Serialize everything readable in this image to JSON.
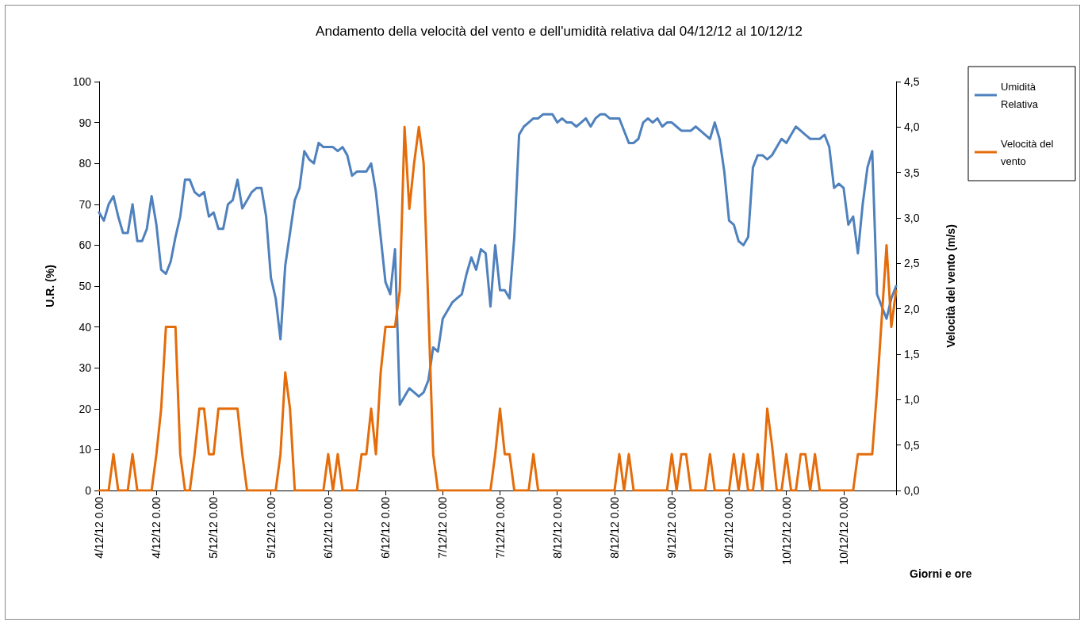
{
  "chart_data": {
    "type": "line",
    "title": "Andamento della velocità del vento e dell'umidità relativa dal 04/12/12 al 10/12/12",
    "xlabel": "Giorni e ore",
    "ylabel": "U.R. (%)",
    "y2label": "Velocità del vento (m/s)",
    "categories": [
      "4/12/12 0.00",
      null,
      null,
      null,
      null,
      null,
      null,
      null,
      null,
      null,
      null,
      null,
      "4/12/12 0.00",
      null,
      null,
      null,
      null,
      null,
      null,
      null,
      null,
      null,
      null,
      null,
      "5/12/12 0.00",
      null,
      null,
      null,
      null,
      null,
      null,
      null,
      null,
      null,
      null,
      null,
      "5/12/12 0.00",
      null,
      null,
      null,
      null,
      null,
      null,
      null,
      null,
      null,
      null,
      null,
      "6/12/12 0.00",
      null,
      null,
      null,
      null,
      null,
      null,
      null,
      null,
      null,
      null,
      null,
      "6/12/12 0.00",
      null,
      null,
      null,
      null,
      null,
      null,
      null,
      null,
      null,
      null,
      null,
      "7/12/12 0.00",
      null,
      null,
      null,
      null,
      null,
      null,
      null,
      null,
      null,
      null,
      null,
      "7/12/12 0.00",
      null,
      null,
      null,
      null,
      null,
      null,
      null,
      null,
      null,
      null,
      null,
      "8/12/12 0.00",
      null,
      null,
      null,
      null,
      null,
      null,
      null,
      null,
      null,
      null,
      null,
      "8/12/12 0.00",
      null,
      null,
      null,
      null,
      null,
      null,
      null,
      null,
      null,
      null,
      null,
      "9/12/12 0.00",
      null,
      null,
      null,
      null,
      null,
      null,
      null,
      null,
      null,
      null,
      null,
      "9/12/12 0.00",
      null,
      null,
      null,
      null,
      null,
      null,
      null,
      null,
      null,
      null,
      null,
      "10/12/12 0.00",
      null,
      null,
      null,
      null,
      null,
      null,
      null,
      null,
      null,
      null,
      null,
      "10/12/12 0.00",
      null,
      null,
      null,
      null,
      null,
      null,
      null,
      null,
      null,
      null,
      null
    ],
    "series": [
      {
        "name": "Umidità Relativa",
        "color": "#4f81bd",
        "values": [
          68,
          66,
          70,
          72,
          67,
          63,
          63,
          70,
          61,
          61,
          64,
          72,
          65,
          54,
          53,
          56,
          62,
          67,
          76,
          76,
          73,
          72,
          73,
          67,
          68,
          64,
          64,
          70,
          71,
          76,
          69,
          71,
          73,
          74,
          74,
          67,
          52,
          47,
          37,
          55,
          63,
          71,
          74,
          83,
          81,
          80,
          85,
          84,
          84,
          84,
          83,
          84,
          82,
          77,
          78,
          78,
          78,
          80,
          73,
          62,
          51,
          48,
          59,
          21,
          23,
          25,
          24,
          23,
          24,
          27,
          35,
          34,
          42,
          44,
          46,
          47,
          48,
          53,
          57,
          54,
          59,
          58,
          45,
          60,
          49,
          49,
          47,
          62,
          87,
          89,
          90,
          91,
          91,
          92,
          92,
          92,
          90,
          91,
          90,
          90,
          89,
          90,
          91,
          89,
          91,
          92,
          92,
          91,
          91,
          91,
          88,
          85,
          85,
          86,
          90,
          91,
          90,
          91,
          89,
          90,
          90,
          89,
          88,
          88,
          88,
          89,
          88,
          87,
          86,
          90,
          86,
          78,
          66,
          65,
          61,
          60,
          62,
          79,
          82,
          82,
          81,
          82,
          84,
          86,
          85,
          87,
          89,
          88,
          87,
          86,
          86,
          86,
          87,
          84,
          74,
          75,
          74,
          65,
          67,
          58,
          70,
          79,
          83,
          48,
          45,
          42,
          47,
          50
        ]
      },
      {
        "name": "Velocità del vento",
        "color": "#e46c0a",
        "axis": "y2",
        "values": [
          0,
          0,
          0,
          0.4,
          0,
          0,
          0,
          0.4,
          0,
          0,
          0,
          0,
          0.4,
          0.9,
          1.8,
          1.8,
          1.8,
          0.4,
          0,
          0,
          0.4,
          0.9,
          0.9,
          0.4,
          0.4,
          0.9,
          0.9,
          0.9,
          0.9,
          0.9,
          0.4,
          0,
          0,
          0,
          0,
          0,
          0,
          0,
          0.4,
          1.3,
          0.9,
          0,
          0,
          0,
          0,
          0,
          0,
          0,
          0.4,
          0,
          0.4,
          0,
          0,
          0,
          0,
          0.4,
          0.4,
          0.9,
          0.4,
          1.3,
          1.8,
          1.8,
          1.8,
          2.2,
          4.0,
          3.1,
          3.6,
          4.0,
          3.6,
          2.0,
          0.4,
          0,
          0,
          0,
          0,
          0,
          0,
          0,
          0,
          0,
          0,
          0,
          0,
          0.4,
          0.9,
          0.4,
          0.4,
          0,
          0,
          0,
          0,
          0.4,
          0,
          0,
          0,
          0,
          0,
          0,
          0,
          0,
          0,
          0,
          0,
          0,
          0,
          0,
          0,
          0,
          0,
          0.4,
          0,
          0.4,
          0,
          0,
          0,
          0,
          0,
          0,
          0,
          0,
          0.4,
          0,
          0.4,
          0.4,
          0,
          0,
          0,
          0,
          0.4,
          0,
          0,
          0,
          0,
          0.4,
          0,
          0.4,
          0,
          0,
          0.4,
          0,
          0.9,
          0.5,
          0,
          0,
          0.4,
          0,
          0,
          0.4,
          0.4,
          0,
          0.4,
          0,
          0,
          0,
          0,
          0,
          0,
          0,
          0,
          0.4,
          0.4,
          0.4,
          0.4,
          1.1,
          1.9,
          2.7,
          1.8,
          2.2
        ]
      }
    ],
    "ylim": [
      0,
      100
    ],
    "yticks": [
      0,
      10,
      20,
      30,
      40,
      50,
      60,
      70,
      80,
      90,
      100
    ],
    "y2lim": [
      0,
      4.5
    ],
    "y2ticks": [
      {
        "value": 0,
        "label": "0,0"
      },
      {
        "value": 0.5,
        "label": "0,5"
      },
      {
        "value": 1,
        "label": "1,0"
      },
      {
        "value": 1.5,
        "label": "1,5"
      },
      {
        "value": 2,
        "label": "2,0"
      },
      {
        "value": 2.5,
        "label": "2,5"
      },
      {
        "value": 3,
        "label": "3,0"
      },
      {
        "value": 3.5,
        "label": "3,5"
      },
      {
        "value": 4,
        "label": "4,0"
      },
      {
        "value": 4.5,
        "label": "4,5"
      }
    ],
    "legend": "right",
    "grid": false,
    "marker": "none",
    "line_style": "solid"
  }
}
